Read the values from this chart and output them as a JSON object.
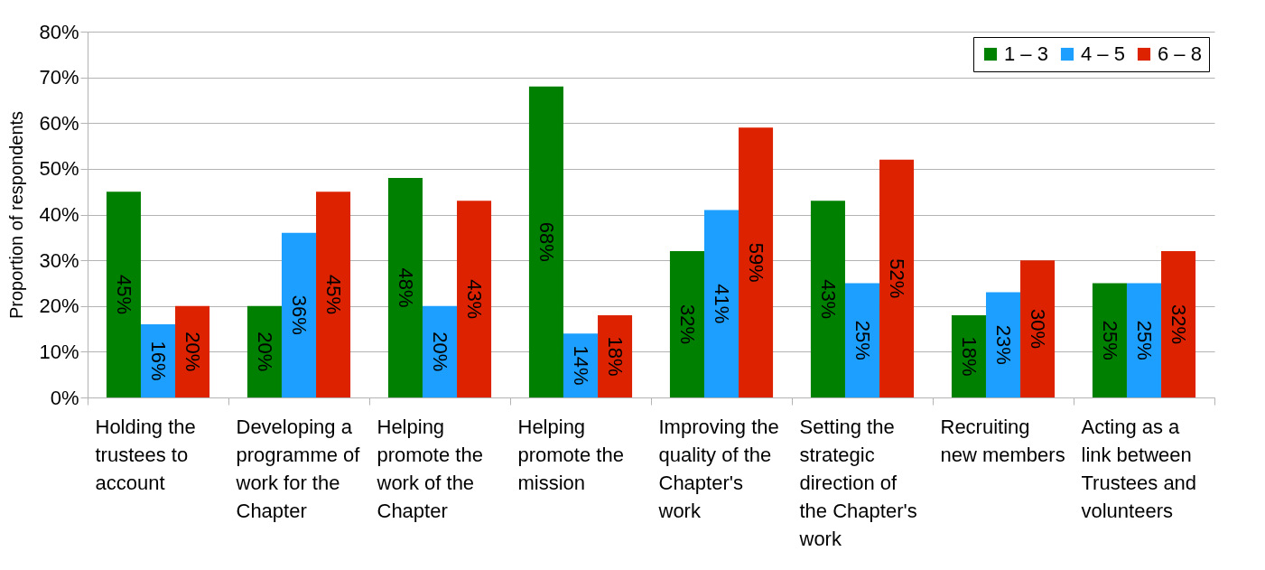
{
  "chart_data": {
    "type": "bar",
    "ylabel": "Proportion of respondents",
    "categories": [
      "Holding the trustees to account",
      "Developing a programme of work for the Chapter",
      "Helping promote the work of the Chapter",
      "Helping promote the mission",
      "Improving the quality of the Chapter's work",
      "Setting the strategic direction of the Chapter's work",
      "Recruiting new members",
      "Acting as a link between Trustees and volunteers"
    ],
    "series": [
      {
        "name": "1 – 3",
        "color": "#008000",
        "values": [
          45,
          20,
          48,
          68,
          32,
          43,
          18,
          25
        ],
        "value_labels": [
          "45%",
          "20%",
          "48%",
          "68%",
          "32%",
          "43%",
          "18%",
          "25%"
        ]
      },
      {
        "name": "4 – 5",
        "color": "#1c9fff",
        "values": [
          16,
          36,
          20,
          14,
          41,
          25,
          23,
          25
        ],
        "value_labels": [
          "16%",
          "36%",
          "20%",
          "14%",
          "41%",
          "25%",
          "23%",
          "25%"
        ]
      },
      {
        "name": "6 – 8",
        "color": "#dd2200",
        "values": [
          20,
          45,
          43,
          18,
          59,
          52,
          30,
          32
        ],
        "value_labels": [
          "20%",
          "45%",
          "43%",
          "18%",
          "59%",
          "52%",
          "30%",
          "32%"
        ]
      }
    ],
    "ylim": [
      0,
      80
    ],
    "yticks": [
      {
        "value": 0,
        "label": "0%"
      },
      {
        "value": 10,
        "label": "10%"
      },
      {
        "value": 20,
        "label": "20%"
      },
      {
        "value": 30,
        "label": "30%"
      },
      {
        "value": 40,
        "label": "40%"
      },
      {
        "value": 50,
        "label": "50%"
      },
      {
        "value": 60,
        "label": "60%"
      },
      {
        "value": 70,
        "label": "70%"
      },
      {
        "value": 80,
        "label": "80%"
      }
    ],
    "grid": "y",
    "legend": "top right"
  }
}
